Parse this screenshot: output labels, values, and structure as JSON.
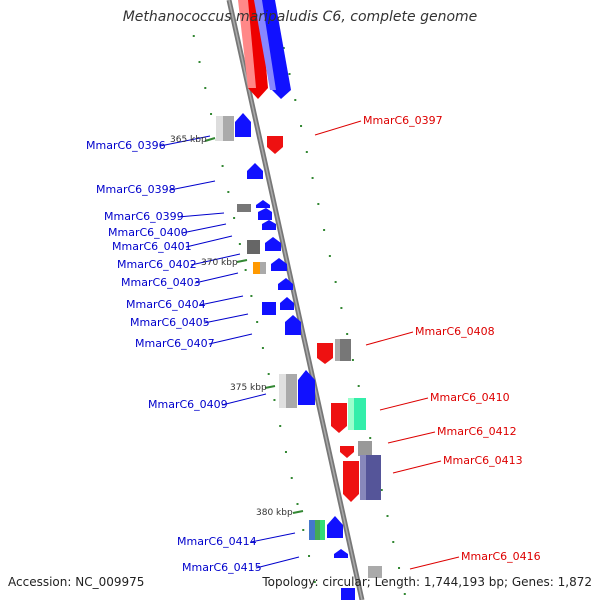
{
  "title": "Methanococcus maripaludis C6, complete genome",
  "footer": {
    "accession": "Accession: NC_009975",
    "summary": "Topology: circular; Length: 1,744,193 bp; Genes: 1,872"
  },
  "colors": {
    "forward": "#0000ff",
    "reverse": "#ff0000",
    "label_forward": "#0000cc",
    "label_reverse": "#dd0000",
    "backbone": "#888888",
    "tick": "#338833"
  },
  "scale_marks": [
    "365 kbp",
    "370 kbp",
    "375 kbp",
    "380 kbp"
  ],
  "genes": [
    {
      "id": "MmarC6_0396",
      "strand": "+"
    },
    {
      "id": "MmarC6_0397",
      "strand": "-"
    },
    {
      "id": "MmarC6_0398",
      "strand": "+"
    },
    {
      "id": "MmarC6_0399",
      "strand": "+"
    },
    {
      "id": "MmarC6_0400",
      "strand": "+"
    },
    {
      "id": "MmarC6_0401",
      "strand": "+"
    },
    {
      "id": "MmarC6_0402",
      "strand": "+"
    },
    {
      "id": "MmarC6_0403",
      "strand": "+"
    },
    {
      "id": "MmarC6_0404",
      "strand": "+"
    },
    {
      "id": "MmarC6_0405",
      "strand": "+"
    },
    {
      "id": "MmarC6_0407",
      "strand": "+"
    },
    {
      "id": "MmarC6_0408",
      "strand": "-"
    },
    {
      "id": "MmarC6_0409",
      "strand": "+"
    },
    {
      "id": "MmarC6_0410",
      "strand": "-"
    },
    {
      "id": "MmarC6_0412",
      "strand": "-"
    },
    {
      "id": "MmarC6_0413",
      "strand": "-"
    },
    {
      "id": "MmarC6_0414",
      "strand": "+"
    },
    {
      "id": "MmarC6_0415",
      "strand": "+"
    },
    {
      "id": "MmarC6_0416",
      "strand": "-"
    }
  ]
}
